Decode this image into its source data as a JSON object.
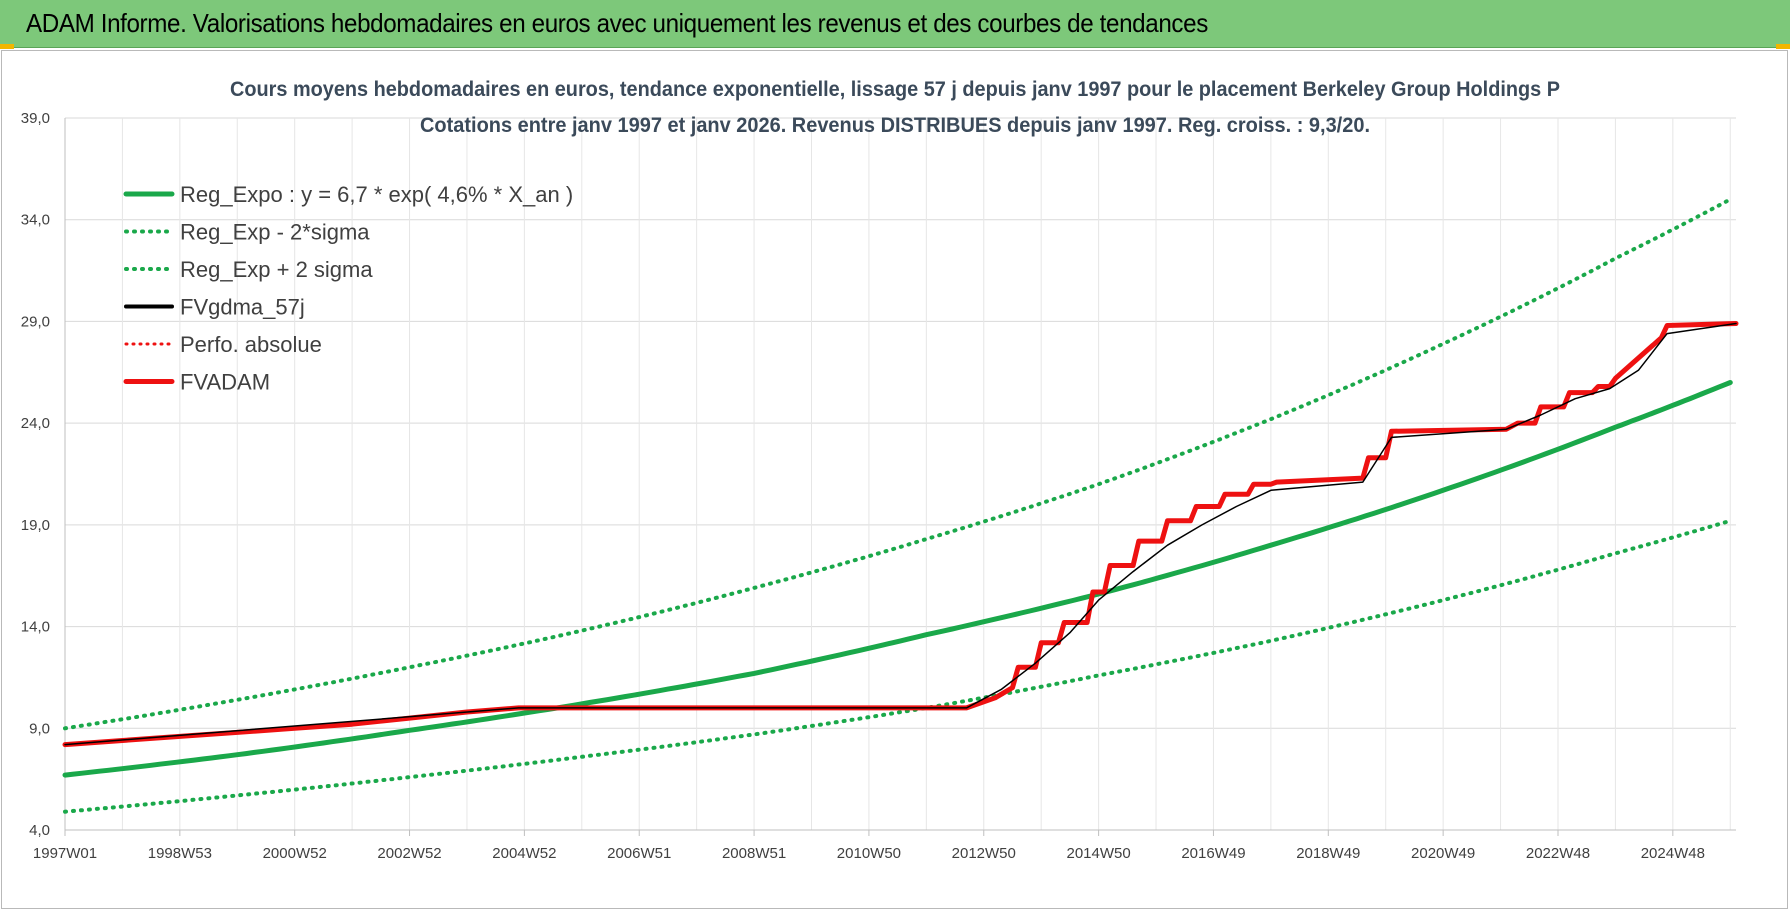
{
  "header": {
    "title": "ADAM Informe. Valorisations hebdomadaires en euros avec uniquement les revenus et des courbes de tendances"
  },
  "colors": {
    "header_bg": "#7dc87a",
    "reg_green": "#1aa84a",
    "fvadam_red": "#ee1111",
    "fvgdma_black": "#000000",
    "grid": "#d9d9d9"
  },
  "chart_data": {
    "type": "line",
    "title": "Cours moyens hebdomadaires en euros, tendance exponentielle, lissage 57 j depuis janv 1997  pour le placement Berkeley Group Holdings P",
    "subtitle": "Cotations entre janv 1997 et janv 2026. Revenus DISTRIBUES depuis janv 1997.  Reg. croiss. : 9,3/20.",
    "xlabel": "",
    "ylabel": "",
    "ylim": [
      4.0,
      39.0
    ],
    "yticks": [
      "4,0",
      "9,0",
      "14,0",
      "19,0",
      "24,0",
      "29,0",
      "34,0",
      "39,0"
    ],
    "xticks": [
      "1997W01",
      "1998W53",
      "2000W52",
      "2002W52",
      "2004W52",
      "2006W51",
      "2008W51",
      "2010W50",
      "2012W50",
      "2014W50",
      "2016W49",
      "2018W49",
      "2020W49",
      "2022W48",
      "2024W48"
    ],
    "xlim": [
      1997.0,
      2026.1
    ],
    "grid": true,
    "legend_position": "top-left",
    "legend": [
      {
        "name": "Reg_Expo : y = 6,7 * exp( 4,6% *  X_an )",
        "style": "solid-green"
      },
      {
        "name": "Reg_Exp - 2*sigma",
        "style": "dotted-green"
      },
      {
        "name": "Reg_Exp + 2 sigma",
        "style": "dotted-green"
      },
      {
        "name": "FVgdma_57j",
        "style": "solid-black"
      },
      {
        "name": "Perfo. absolue",
        "style": "dotted-red"
      },
      {
        "name": "FVADAM",
        "style": "solid-red"
      }
    ],
    "series": [
      {
        "name": "Reg_Expo : y = 6,7 * exp( 4,6% *  X_an )",
        "x": [
          1997,
          2000,
          2003,
          2006,
          2009,
          2012,
          2015,
          2018,
          2021,
          2024,
          2026
        ],
        "y": [
          6.7,
          7.7,
          8.9,
          10.2,
          11.7,
          13.6,
          15.6,
          18.0,
          20.7,
          23.8,
          26.0
        ]
      },
      {
        "name": "Reg_Exp - 2*sigma",
        "x": [
          1997,
          2000,
          2003,
          2006,
          2009,
          2012,
          2015,
          2018,
          2021,
          2024,
          2026
        ],
        "y": [
          4.9,
          5.7,
          6.6,
          7.6,
          8.7,
          10.0,
          11.6,
          13.3,
          15.3,
          17.6,
          19.2
        ]
      },
      {
        "name": "Reg_Exp + 2 sigma",
        "x": [
          1997,
          2000,
          2003,
          2006,
          2009,
          2012,
          2015,
          2018,
          2021,
          2024,
          2026
        ],
        "y": [
          9.0,
          10.4,
          12.0,
          13.8,
          15.9,
          18.3,
          21.0,
          24.2,
          27.9,
          32.1,
          35.0
        ]
      },
      {
        "name": "FVADAM",
        "x": [
          1997.0,
          1998.0,
          1999.0,
          2000.0,
          2001.0,
          2002.0,
          2003.0,
          2004.0,
          2004.9,
          2012.7,
          2013.2,
          2013.5,
          2013.6,
          2013.9,
          2014.0,
          2014.3,
          2014.4,
          2014.8,
          2014.9,
          2015.1,
          2015.2,
          2015.6,
          2015.7,
          2016.1,
          2016.2,
          2016.6,
          2016.7,
          2017.1,
          2017.2,
          2017.6,
          2017.7,
          2018.0,
          2018.1,
          2019.6,
          2019.7,
          2020.0,
          2020.1,
          2022.1,
          2022.3,
          2022.6,
          2022.7,
          2023.1,
          2023.2,
          2023.6,
          2023.7,
          2023.9,
          2024.0,
          2024.8,
          2024.9,
          2026.1
        ],
        "y": [
          8.2,
          8.4,
          8.6,
          8.8,
          9.0,
          9.2,
          9.5,
          9.8,
          10.0,
          10.0,
          10.5,
          11.0,
          12.0,
          12.0,
          13.2,
          13.2,
          14.2,
          14.2,
          15.7,
          15.7,
          17.0,
          17.0,
          18.2,
          18.2,
          19.2,
          19.2,
          19.9,
          19.9,
          20.5,
          20.5,
          21.0,
          21.0,
          21.1,
          21.3,
          22.3,
          22.3,
          23.6,
          23.7,
          24.0,
          24.0,
          24.8,
          24.8,
          25.5,
          25.5,
          25.8,
          25.8,
          26.2,
          28.2,
          28.8,
          28.9
        ]
      },
      {
        "name": "FVgdma_57j",
        "x": [
          1997.0,
          2004.9,
          2012.7,
          2013.3,
          2013.9,
          2014.5,
          2015.0,
          2015.6,
          2016.2,
          2016.8,
          2017.4,
          2018.0,
          2019.6,
          2020.1,
          2022.1,
          2022.7,
          2023.3,
          2023.9,
          2024.4,
          2024.9,
          2026.1
        ],
        "y": [
          8.2,
          10.0,
          10.0,
          10.9,
          12.2,
          13.7,
          15.3,
          16.7,
          18.0,
          19.0,
          19.9,
          20.7,
          21.1,
          23.3,
          23.7,
          24.4,
          25.2,
          25.7,
          26.6,
          28.4,
          28.9
        ]
      }
    ]
  }
}
